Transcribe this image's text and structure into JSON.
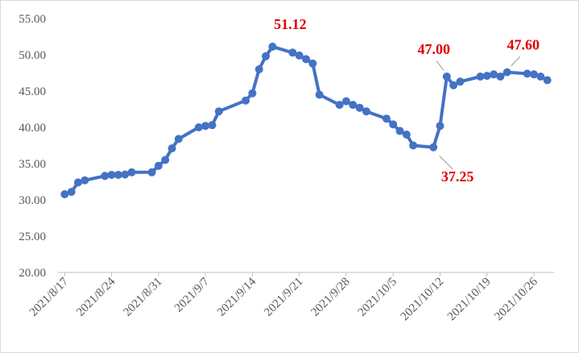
{
  "chart_data": {
    "type": "line",
    "x": [
      "2021-08-17",
      "2021-08-18",
      "2021-08-19",
      "2021-08-20",
      "2021-08-23",
      "2021-08-24",
      "2021-08-25",
      "2021-08-26",
      "2021-08-27",
      "2021-08-30",
      "2021-08-31",
      "2021-09-01",
      "2021-09-02",
      "2021-09-03",
      "2021-09-06",
      "2021-09-07",
      "2021-09-08",
      "2021-09-09",
      "2021-09-13",
      "2021-09-14",
      "2021-09-15",
      "2021-09-16",
      "2021-09-17",
      "2021-09-20",
      "2021-09-21",
      "2021-09-22",
      "2021-09-23",
      "2021-09-24",
      "2021-09-27",
      "2021-09-28",
      "2021-09-29",
      "2021-09-30",
      "2021-10-01",
      "2021-10-04",
      "2021-10-05",
      "2021-10-06",
      "2021-10-07",
      "2021-10-08",
      "2021-10-11",
      "2021-10-12",
      "2021-10-13",
      "2021-10-14",
      "2021-10-15",
      "2021-10-18",
      "2021-10-19",
      "2021-10-20",
      "2021-10-21",
      "2021-10-22",
      "2021-10-25",
      "2021-10-26",
      "2021-10-27",
      "2021-10-28"
    ],
    "series": [
      {
        "color": "#4472c4",
        "values": [
          30.78,
          31.1,
          32.4,
          32.7,
          33.3,
          33.45,
          33.45,
          33.5,
          33.8,
          33.8,
          34.7,
          35.5,
          37.1,
          38.4,
          40.0,
          40.2,
          40.3,
          42.2,
          43.7,
          44.7,
          48.0,
          49.8,
          51.12,
          50.3,
          49.9,
          49.4,
          48.8,
          44.5,
          43.1,
          43.6,
          43.1,
          42.7,
          42.2,
          41.2,
          40.4,
          39.5,
          39.0,
          37.5,
          37.25,
          40.2,
          47.0,
          45.8,
          46.3,
          47.0,
          47.1,
          47.3,
          47.0,
          47.6,
          47.4,
          47.3,
          47.0,
          46.5
        ],
        "value_labels": [
          null,
          null,
          null,
          null,
          null,
          null,
          null,
          null,
          null,
          null,
          null,
          null,
          null,
          null,
          null,
          null,
          null,
          null,
          null,
          null,
          null,
          null,
          "51.12",
          null,
          null,
          null,
          null,
          null,
          null,
          null,
          null,
          null,
          null,
          null,
          null,
          null,
          null,
          null,
          "37.25",
          null,
          "47.00",
          null,
          null,
          null,
          null,
          null,
          null,
          "47.60",
          null,
          null,
          null,
          null
        ],
        "value_label_color": "#e00000"
      }
    ],
    "xlim": [
      "2021-08-16",
      "2021-10-29"
    ],
    "xticks": [
      {
        "value": "2021-08-17",
        "label": "2021/8/17"
      },
      {
        "value": "2021-08-24",
        "label": "2021/8/24"
      },
      {
        "value": "2021-08-31",
        "label": "2021/8/31"
      },
      {
        "value": "2021-09-07",
        "label": "2021/9/7"
      },
      {
        "value": "2021-09-14",
        "label": "2021/9/14"
      },
      {
        "value": "2021-09-21",
        "label": "2021/9/21"
      },
      {
        "value": "2021-09-28",
        "label": "2021/9/28"
      },
      {
        "value": "2021-10-05",
        "label": "2021/10/5"
      },
      {
        "value": "2021-10-12",
        "label": "2021/10/12"
      },
      {
        "value": "2021-10-19",
        "label": "2021/10/19"
      },
      {
        "value": "2021-10-26",
        "label": "2021/10/26"
      }
    ],
    "ylim": [
      20,
      55
    ],
    "yticks": [
      {
        "value": 20,
        "label": "20.00"
      },
      {
        "value": 25,
        "label": "25.00"
      },
      {
        "value": 30,
        "label": "30.00"
      },
      {
        "value": 35,
        "label": "35.00"
      },
      {
        "value": 40,
        "label": "40.00"
      },
      {
        "value": 45,
        "label": "45.00"
      },
      {
        "value": 50,
        "label": "50.00"
      },
      {
        "value": 55,
        "label": "55.00"
      }
    ],
    "grid": false
  }
}
